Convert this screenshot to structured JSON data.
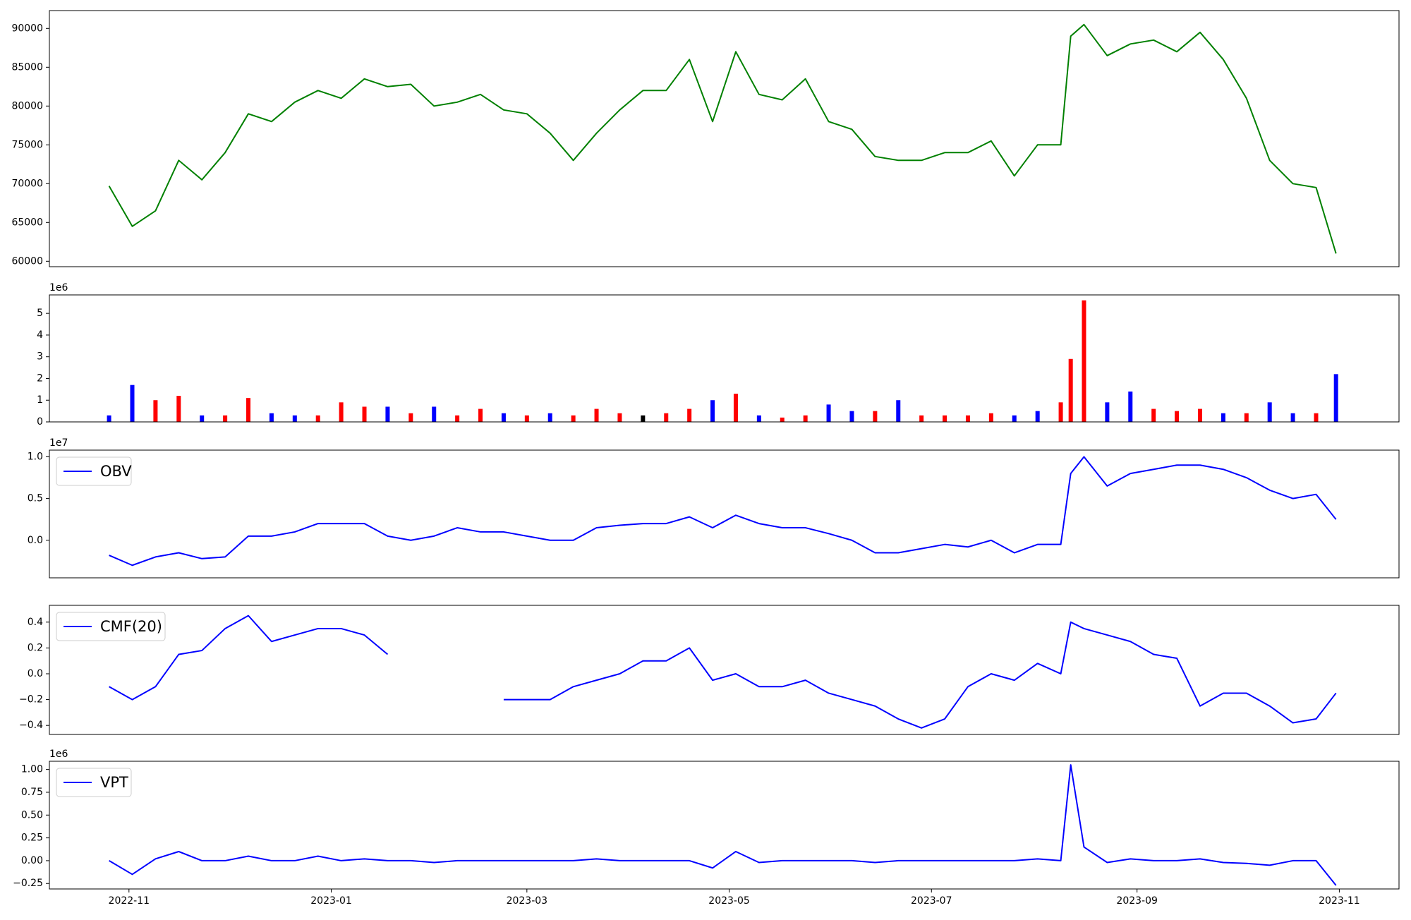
{
  "chart_data": [
    {
      "type": "line",
      "color": "green",
      "x": [
        "2022-10-26",
        "2022-11-02",
        "2022-11-09",
        "2022-11-16",
        "2022-11-23",
        "2022-11-30",
        "2022-12-07",
        "2022-12-14",
        "2022-12-21",
        "2022-12-28",
        "2023-01-04",
        "2023-01-11",
        "2023-01-18",
        "2023-01-25",
        "2023-02-01",
        "2023-02-08",
        "2023-02-15",
        "2023-02-22",
        "2023-03-01",
        "2023-03-08",
        "2023-03-15",
        "2023-03-22",
        "2023-03-29",
        "2023-04-05",
        "2023-04-12",
        "2023-04-19",
        "2023-04-26",
        "2023-05-03",
        "2023-05-10",
        "2023-05-17",
        "2023-05-24",
        "2023-05-31",
        "2023-06-07",
        "2023-06-14",
        "2023-06-21",
        "2023-06-28",
        "2023-07-05",
        "2023-07-12",
        "2023-07-19",
        "2023-07-26",
        "2023-08-02",
        "2023-08-09",
        "2023-08-12",
        "2023-08-16",
        "2023-08-23",
        "2023-08-30",
        "2023-09-06",
        "2023-09-13",
        "2023-09-20",
        "2023-09-27",
        "2023-10-04",
        "2023-10-11",
        "2023-10-18",
        "2023-10-25",
        "2023-10-31"
      ],
      "values": [
        69700,
        64500,
        66500,
        73000,
        70500,
        74000,
        79000,
        78000,
        80500,
        82000,
        81000,
        83500,
        82500,
        82800,
        80000,
        80500,
        81500,
        79500,
        79000,
        76500,
        73000,
        76500,
        79500,
        82000,
        82000,
        86000,
        78000,
        87000,
        81500,
        80800,
        83500,
        78000,
        77000,
        73500,
        73000,
        73000,
        74000,
        74000,
        75500,
        71000,
        75000,
        75000,
        89000,
        90500,
        86500,
        88000,
        88500,
        87000,
        89500,
        86000,
        81000,
        73000,
        70000,
        69500,
        61000
      ],
      "ylim": [
        59300,
        92300
      ],
      "yticks": [
        60000,
        65000,
        70000,
        75000,
        80000,
        85000,
        90000
      ]
    },
    {
      "type": "bar",
      "offset_label": "1e6",
      "x": [
        "2022-10-26",
        "2022-11-02",
        "2022-11-09",
        "2022-11-16",
        "2022-11-23",
        "2022-11-30",
        "2022-12-07",
        "2022-12-14",
        "2022-12-21",
        "2022-12-28",
        "2023-01-04",
        "2023-01-11",
        "2023-01-18",
        "2023-01-25",
        "2023-02-01",
        "2023-02-08",
        "2023-02-15",
        "2023-02-22",
        "2023-03-01",
        "2023-03-08",
        "2023-03-15",
        "2023-03-22",
        "2023-03-29",
        "2023-04-05",
        "2023-04-12",
        "2023-04-19",
        "2023-04-26",
        "2023-05-03",
        "2023-05-10",
        "2023-05-17",
        "2023-05-24",
        "2023-05-31",
        "2023-06-07",
        "2023-06-14",
        "2023-06-21",
        "2023-06-28",
        "2023-07-05",
        "2023-07-12",
        "2023-07-19",
        "2023-07-26",
        "2023-08-02",
        "2023-08-09",
        "2023-08-12",
        "2023-08-16",
        "2023-08-23",
        "2023-08-30",
        "2023-09-06",
        "2023-09-13",
        "2023-09-20",
        "2023-09-27",
        "2023-10-04",
        "2023-10-11",
        "2023-10-18",
        "2023-10-25",
        "2023-10-31"
      ],
      "values": [
        0.3,
        1.7,
        1.0,
        1.2,
        0.3,
        0.3,
        1.1,
        0.4,
        0.3,
        0.3,
        0.9,
        0.7,
        0.7,
        0.4,
        0.7,
        0.3,
        0.6,
        0.4,
        0.3,
        0.4,
        0.3,
        0.6,
        0.4,
        0.3,
        0.4,
        0.6,
        1.0,
        1.3,
        0.3,
        0.2,
        0.3,
        0.8,
        0.5,
        0.5,
        1.0,
        0.3,
        0.3,
        0.3,
        0.4,
        0.3,
        0.5,
        0.9,
        2.9,
        5.6,
        0.9,
        1.4,
        0.6,
        0.5,
        0.6,
        0.4,
        0.4,
        0.9,
        0.4,
        0.4,
        2.2
      ],
      "colors": [
        "blue",
        "blue",
        "red",
        "red",
        "blue",
        "red",
        "red",
        "blue",
        "blue",
        "red",
        "red",
        "red",
        "blue",
        "red",
        "blue",
        "red",
        "red",
        "blue",
        "red",
        "blue",
        "red",
        "red",
        "red",
        "black",
        "red",
        "red",
        "blue",
        "red",
        "blue",
        "red",
        "red",
        "blue",
        "blue",
        "red",
        "blue",
        "red",
        "red",
        "red",
        "red",
        "blue",
        "blue",
        "red",
        "red",
        "red",
        "blue",
        "blue",
        "red",
        "red",
        "red",
        "blue",
        "red",
        "blue",
        "blue",
        "red",
        "blue"
      ],
      "ylim": [
        0,
        5.85
      ],
      "yticks": [
        0,
        1,
        2,
        3,
        4,
        5
      ]
    },
    {
      "type": "line",
      "offset_label": "1e7",
      "legend": "upper left",
      "x": [
        "2022-10-26",
        "2022-11-02",
        "2022-11-09",
        "2022-11-16",
        "2022-11-23",
        "2022-11-30",
        "2022-12-07",
        "2022-12-14",
        "2022-12-21",
        "2022-12-28",
        "2023-01-04",
        "2023-01-11",
        "2023-01-18",
        "2023-01-25",
        "2023-02-01",
        "2023-02-08",
        "2023-02-15",
        "2023-02-22",
        "2023-03-01",
        "2023-03-08",
        "2023-03-15",
        "2023-03-22",
        "2023-03-29",
        "2023-04-05",
        "2023-04-12",
        "2023-04-19",
        "2023-04-26",
        "2023-05-03",
        "2023-05-10",
        "2023-05-17",
        "2023-05-24",
        "2023-05-31",
        "2023-06-07",
        "2023-06-14",
        "2023-06-21",
        "2023-06-28",
        "2023-07-05",
        "2023-07-12",
        "2023-07-19",
        "2023-07-26",
        "2023-08-02",
        "2023-08-09",
        "2023-08-12",
        "2023-08-16",
        "2023-08-23",
        "2023-08-30",
        "2023-09-06",
        "2023-09-13",
        "2023-09-20",
        "2023-09-27",
        "2023-10-04",
        "2023-10-11",
        "2023-10-18",
        "2023-10-25",
        "2023-10-31"
      ],
      "series": [
        {
          "name": "OBV",
          "color": "blue",
          "values": [
            -0.18,
            -0.3,
            -0.2,
            -0.15,
            -0.22,
            -0.2,
            0.05,
            0.05,
            0.1,
            0.2,
            0.2,
            0.2,
            0.05,
            0.0,
            0.05,
            0.15,
            0.1,
            0.1,
            0.05,
            0.0,
            0.0,
            0.15,
            0.18,
            0.2,
            0.2,
            0.28,
            0.15,
            0.3,
            0.2,
            0.15,
            0.15,
            0.08,
            0.0,
            -0.15,
            -0.15,
            -0.1,
            -0.05,
            -0.08,
            0.0,
            -0.15,
            -0.05,
            -0.05,
            0.8,
            1.0,
            0.65,
            0.8,
            0.85,
            0.9,
            0.9,
            0.85,
            0.75,
            0.6,
            0.5,
            0.55,
            0.25
          ]
        }
      ],
      "ylim": [
        -0.45,
        1.08
      ],
      "yticks": [
        {
          "value": 0,
          "label": "0.0"
        },
        {
          "value": 0.5,
          "label": "0.5"
        },
        {
          "value": 1,
          "label": "1.0"
        }
      ]
    },
    {
      "type": "line",
      "legend": "upper left",
      "x": [
        "2022-10-26",
        "2022-11-02",
        "2022-11-09",
        "2022-11-16",
        "2022-11-23",
        "2022-11-30",
        "2022-12-07",
        "2022-12-14",
        "2022-12-21",
        "2022-12-28",
        "2023-01-04",
        "2023-01-11",
        "2023-01-18",
        "2023-01-25",
        "2023-02-01",
        "2023-02-08",
        "2023-02-15",
        "2023-02-22",
        "2023-03-01",
        "2023-03-08",
        "2023-03-15",
        "2023-03-22",
        "2023-03-29",
        "2023-04-05",
        "2023-04-12",
        "2023-04-19",
        "2023-04-26",
        "2023-05-03",
        "2023-05-10",
        "2023-05-17",
        "2023-05-24",
        "2023-05-31",
        "2023-06-07",
        "2023-06-14",
        "2023-06-21",
        "2023-06-28",
        "2023-07-05",
        "2023-07-12",
        "2023-07-19",
        "2023-07-26",
        "2023-08-02",
        "2023-08-09",
        "2023-08-12",
        "2023-08-16",
        "2023-08-23",
        "2023-08-30",
        "2023-09-06",
        "2023-09-13",
        "2023-09-20",
        "2023-09-27",
        "2023-10-04",
        "2023-10-11",
        "2023-10-18",
        "2023-10-25",
        "2023-10-31"
      ],
      "series": [
        {
          "name": "CMF(20)",
          "color": "blue",
          "values": [
            -0.1,
            -0.2,
            -0.1,
            0.15,
            0.18,
            0.35,
            0.45,
            0.25,
            0.3,
            0.35,
            0.35,
            0.3,
            0.15,
            null,
            null,
            null,
            null,
            -0.2,
            -0.2,
            -0.2,
            -0.1,
            -0.05,
            0.0,
            0.1,
            0.1,
            0.2,
            -0.05,
            0.0,
            -0.1,
            -0.1,
            -0.05,
            -0.15,
            -0.2,
            -0.25,
            -0.35,
            -0.42,
            -0.35,
            -0.1,
            0.0,
            -0.05,
            0.08,
            0.0,
            0.4,
            0.35,
            0.3,
            0.25,
            0.15,
            0.12,
            -0.25,
            -0.15,
            -0.15,
            -0.25,
            -0.38,
            -0.35,
            -0.15
          ]
        }
      ],
      "ylim": [
        -0.47,
        0.53
      ],
      "yticks": [
        {
          "value": -0.4,
          "label": "−0.4"
        },
        {
          "value": -0.2,
          "label": "−0.2"
        },
        {
          "value": 0,
          "label": "0.0"
        },
        {
          "value": 0.2,
          "label": "0.2"
        },
        {
          "value": 0.4,
          "label": "0.4"
        }
      ]
    },
    {
      "type": "line",
      "offset_label": "1e6",
      "legend": "upper left",
      "x": [
        "2022-10-26",
        "2022-11-02",
        "2022-11-09",
        "2022-11-16",
        "2022-11-23",
        "2022-11-30",
        "2022-12-07",
        "2022-12-14",
        "2022-12-21",
        "2022-12-28",
        "2023-01-04",
        "2023-01-11",
        "2023-01-18",
        "2023-01-25",
        "2023-02-01",
        "2023-02-08",
        "2023-02-15",
        "2023-02-22",
        "2023-03-01",
        "2023-03-08",
        "2023-03-15",
        "2023-03-22",
        "2023-03-29",
        "2023-04-05",
        "2023-04-12",
        "2023-04-19",
        "2023-04-26",
        "2023-05-03",
        "2023-05-10",
        "2023-05-17",
        "2023-05-24",
        "2023-05-31",
        "2023-06-07",
        "2023-06-14",
        "2023-06-21",
        "2023-06-28",
        "2023-07-05",
        "2023-07-12",
        "2023-07-19",
        "2023-07-26",
        "2023-08-02",
        "2023-08-09",
        "2023-08-12",
        "2023-08-16",
        "2023-08-23",
        "2023-08-30",
        "2023-09-06",
        "2023-09-13",
        "2023-09-20",
        "2023-09-27",
        "2023-10-04",
        "2023-10-11",
        "2023-10-18",
        "2023-10-25",
        "2023-10-31"
      ],
      "series": [
        {
          "name": "VPT",
          "color": "blue",
          "values": [
            0.0,
            -0.15,
            0.02,
            0.1,
            0.0,
            0.0,
            0.05,
            0.0,
            0.0,
            0.05,
            0.0,
            0.02,
            0.0,
            0.0,
            -0.02,
            0.0,
            0.0,
            0.0,
            0.0,
            0.0,
            0.0,
            0.02,
            0.0,
            0.0,
            0.0,
            0.0,
            -0.08,
            0.1,
            -0.02,
            0.0,
            0.0,
            0.0,
            0.0,
            -0.02,
            0.0,
            0.0,
            0.0,
            0.0,
            0.0,
            0.0,
            0.02,
            0.0,
            1.05,
            0.15,
            -0.02,
            0.02,
            0.0,
            0.0,
            0.02,
            -0.02,
            -0.03,
            -0.05,
            0.0,
            0.0,
            -0.27
          ]
        }
      ],
      "ylim": [
        -0.31,
        1.09
      ],
      "yticks": [
        {
          "value": -0.25,
          "label": "−0.25"
        },
        {
          "value": 0,
          "label": "0.00"
        },
        {
          "value": 0.25,
          "label": "0.25"
        },
        {
          "value": 0.5,
          "label": "0.50"
        },
        {
          "value": 0.75,
          "label": "0.75"
        },
        {
          "value": 1,
          "label": "1.00"
        }
      ],
      "xlim": [
        "2022-10-08",
        "2023-11-19"
      ],
      "xticks": [
        {
          "value": "2022-11-01",
          "label": "2022-11"
        },
        {
          "value": "2023-01-01",
          "label": "2023-01"
        },
        {
          "value": "2023-03-01",
          "label": "2023-03"
        },
        {
          "value": "2023-05-01",
          "label": "2023-05"
        },
        {
          "value": "2023-07-01",
          "label": "2023-07"
        },
        {
          "value": "2023-09-01",
          "label": "2023-09"
        },
        {
          "value": "2023-11-01",
          "label": "2023-11"
        }
      ]
    }
  ]
}
